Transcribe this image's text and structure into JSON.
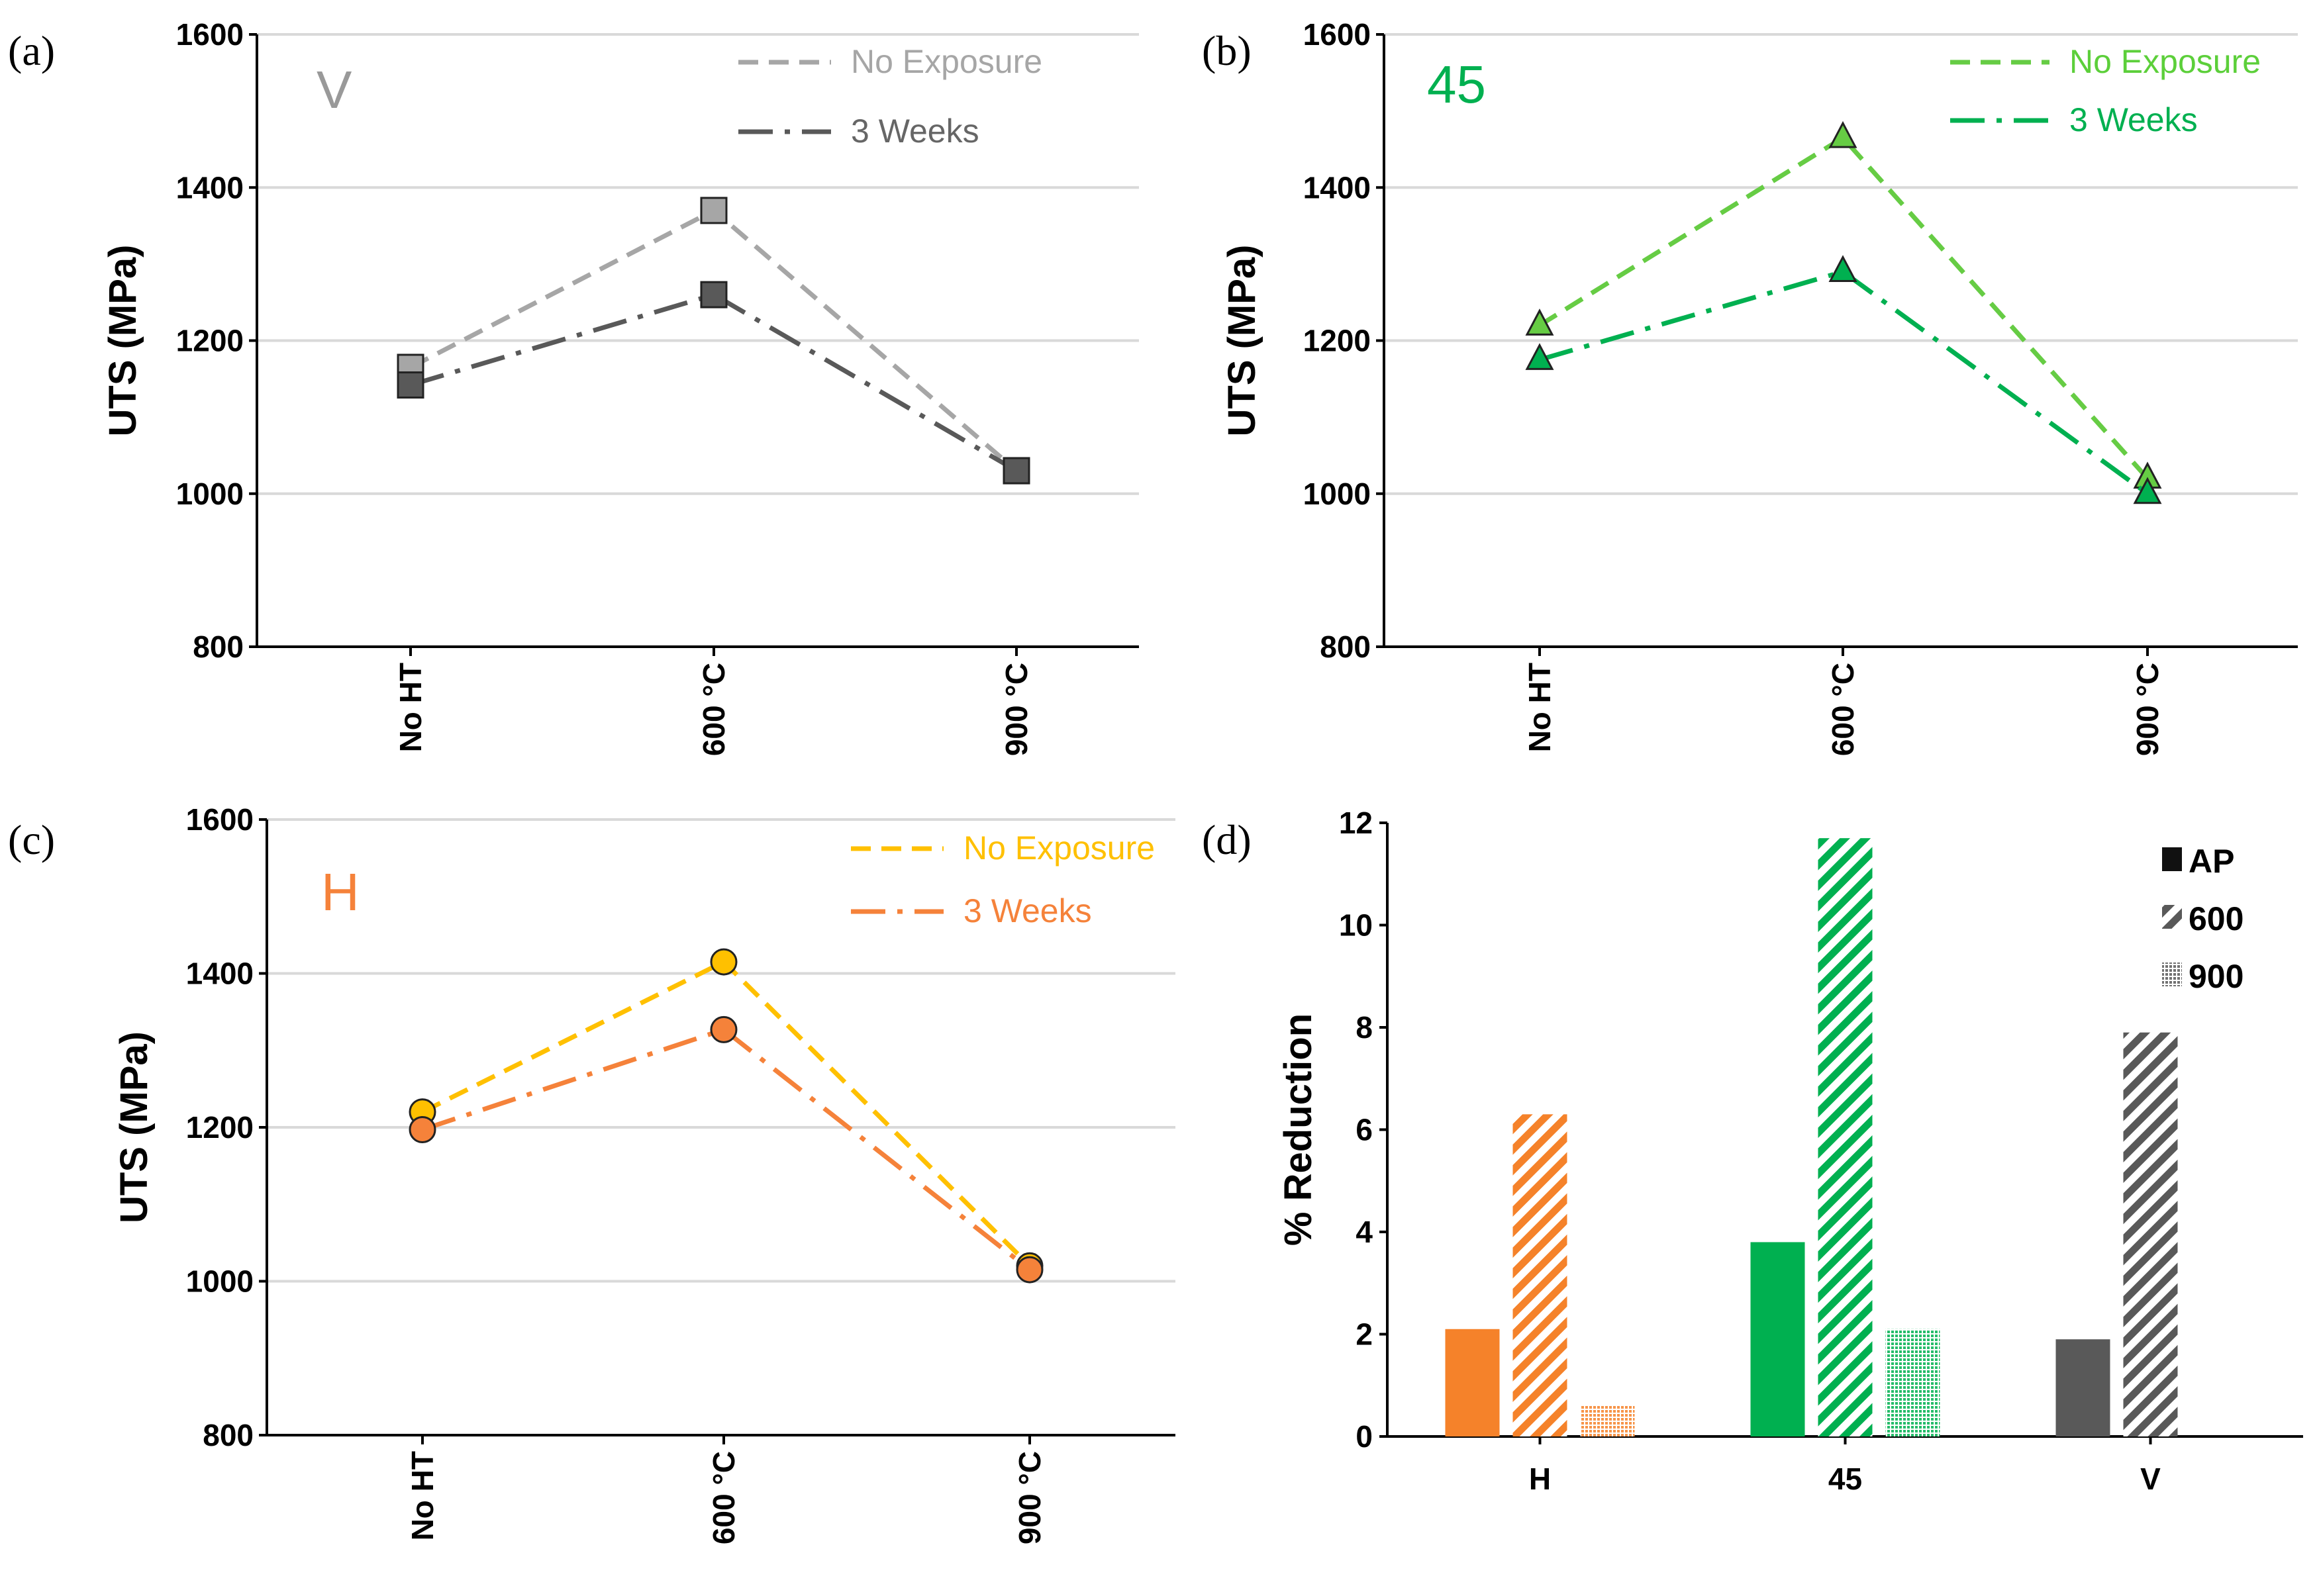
{
  "chart_data": [
    {
      "panel": "(a)",
      "type": "line",
      "tag": "V",
      "tag_color": "#999999",
      "categories": [
        "No  HT",
        "600 °C",
        "900 °C"
      ],
      "ylabel": "UTS (MPa)",
      "ylim": [
        800,
        1600
      ],
      "yticks": [
        800,
        1000,
        1200,
        1400,
        1600
      ],
      "grid": true,
      "marker": "square",
      "legend_position": "top-right",
      "series": [
        {
          "name": "No Exposure",
          "values": [
            1165,
            1370,
            1030
          ],
          "color": "#a6a6a6",
          "text_color": "#a6a6a6",
          "dash": "dash"
        },
        {
          "name": "3 Weeks",
          "values": [
            1142,
            1260,
            1030
          ],
          "color": "#595959",
          "text_color": "#666666",
          "dash": "dashdot"
        }
      ]
    },
    {
      "panel": "(b)",
      "type": "line",
      "tag": "45",
      "tag_color": "#00b050",
      "categories": [
        "No  HT",
        "600 °C",
        "900 °C"
      ],
      "ylabel": "UTS (MPa)",
      "ylim": [
        800,
        1600
      ],
      "yticks": [
        800,
        1000,
        1200,
        1400,
        1600
      ],
      "grid": true,
      "marker": "triangle",
      "legend_position": "top-right",
      "series": [
        {
          "name": "No Exposure",
          "values": [
            1220,
            1465,
            1020
          ],
          "color": "#66cc44",
          "text_color": "#5ccf3a",
          "dash": "dash"
        },
        {
          "name": "3 Weeks",
          "values": [
            1175,
            1290,
            1000
          ],
          "color": "#00b050",
          "text_color": "#00b050",
          "dash": "dashdot"
        }
      ]
    },
    {
      "panel": "(c)",
      "type": "line",
      "tag": "H",
      "tag_color": "#f5823a",
      "categories": [
        "No  HT",
        "600 °C",
        "900 °C"
      ],
      "ylabel": "UTS (MPa)",
      "ylim": [
        800,
        1600
      ],
      "yticks": [
        800,
        1000,
        1200,
        1400,
        1600
      ],
      "grid": true,
      "marker": "circle",
      "legend_position": "top-right",
      "series": [
        {
          "name": "No Exposure",
          "values": [
            1220,
            1415,
            1020
          ],
          "color": "#ffc000",
          "text_color": "#ffc000",
          "dash": "dash"
        },
        {
          "name": "3 Weeks",
          "values": [
            1197,
            1327,
            1015
          ],
          "color": "#f5823a",
          "text_color": "#f5823a",
          "dash": "dashdot"
        }
      ]
    },
    {
      "panel": "(d)",
      "type": "bar",
      "categories": [
        "H",
        "45",
        "V"
      ],
      "category_colors": [
        "#f5822a",
        "#00b050",
        "#595959"
      ],
      "ylabel": "% Reduction",
      "ylim": [
        0,
        12
      ],
      "yticks": [
        0,
        2,
        4,
        6,
        8,
        10,
        12
      ],
      "grid": false,
      "legend_position": "top-right",
      "series": [
        {
          "name": "AP",
          "pattern": "solid",
          "values": [
            2.1,
            3.8,
            1.9
          ]
        },
        {
          "name": "600",
          "pattern": "diagonal",
          "values": [
            6.3,
            11.7,
            7.9
          ]
        },
        {
          "name": "900",
          "pattern": "dotted",
          "values": [
            0.6,
            2.1,
            0
          ]
        }
      ]
    }
  ]
}
